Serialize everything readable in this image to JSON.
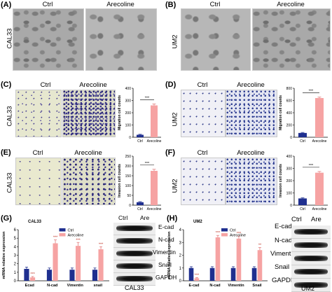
{
  "panels": {
    "A": {
      "label": "(A)",
      "cell_line": "CAL33",
      "ctrl": "Ctrl",
      "treat": "Arecoline"
    },
    "B": {
      "label": "(B)",
      "cell_line": "UM2",
      "ctrl": "Ctrl",
      "treat": "Arecoline"
    },
    "C": {
      "label": "(C)",
      "cell_line": "CAL33",
      "ctrl": "Ctrl",
      "treat": "Arecoline"
    },
    "D": {
      "label": "(D)",
      "cell_line": "UM2",
      "ctrl": "Ctrl",
      "treat": "Arecoline"
    },
    "E": {
      "label": "(E)",
      "cell_line": "CAL33",
      "ctrl": "Ctrl",
      "treat": "Arecoline"
    },
    "F": {
      "label": "(F)",
      "cell_line": "UM2",
      "ctrl": "Ctrl",
      "treat": "Arecoline"
    },
    "G": {
      "label": "(G)",
      "title": "CAL33",
      "wb_ctrl": "Ctrl",
      "wb_treat": "Are",
      "wb_caption": "CAL33",
      "wb_rows": [
        "E-cad",
        "N-cad",
        "Vimentin",
        "Snail",
        "GAPDH"
      ]
    },
    "H": {
      "label": "(H)",
      "title": "UM2",
      "wb_ctrl": "Ctrl",
      "wb_treat": "Are",
      "wb_caption": "UM2",
      "wb_rows": [
        "E-cad",
        "N-cad",
        "Vimentin",
        "Snail",
        "GAPDH"
      ]
    }
  },
  "colors": {
    "ctrl": "#1f2f8f",
    "treat": "#f6a3a3",
    "err_treat": "#e27f7f"
  },
  "chart_data": [
    {
      "panel": "C",
      "type": "bar",
      "ylabel": "Migration cell counts",
      "categories": [
        "Ctrl",
        "Arecoline"
      ],
      "values": [
        20,
        260
      ],
      "errors": [
        4,
        12
      ],
      "ylim": [
        0,
        400
      ],
      "yticks": [
        0,
        100,
        200,
        300,
        400
      ],
      "significance": "***"
    },
    {
      "panel": "D",
      "type": "bar",
      "ylabel": "Migration cell counts",
      "categories": [
        "Ctrl",
        "Arecoline"
      ],
      "values": [
        70,
        640
      ],
      "errors": [
        8,
        15
      ],
      "ylim": [
        0,
        800
      ],
      "yticks": [
        0,
        200,
        400,
        600,
        800
      ],
      "significance": "***"
    },
    {
      "panel": "E",
      "type": "bar",
      "ylabel": "Invasion cell counts",
      "categories": [
        "Ctrl",
        "Arecoline"
      ],
      "values": [
        15,
        175
      ],
      "errors": [
        3,
        8
      ],
      "ylim": [
        0,
        250
      ],
      "yticks": [
        0,
        50,
        100,
        150,
        200,
        250
      ],
      "significance": "***"
    },
    {
      "panel": "F",
      "type": "bar",
      "ylabel": "Invasion cell counts",
      "categories": [
        "Ctrl",
        "Arecoline"
      ],
      "values": [
        55,
        265
      ],
      "errors": [
        5,
        10
      ],
      "ylim": [
        0,
        400
      ],
      "yticks": [
        0,
        100,
        200,
        300,
        400
      ],
      "significance": "***"
    },
    {
      "panel": "G",
      "type": "bar",
      "title": "CAL33",
      "ylabel": "mRNA relative expression",
      "categories": [
        "Ecad",
        "N-cad",
        "Vimentin",
        "snail"
      ],
      "series": [
        {
          "name": "Ctrl",
          "values": [
            1.4,
            1.3,
            1.3,
            1.3
          ],
          "errors": [
            0.2,
            0.2,
            0.2,
            0.2
          ]
        },
        {
          "name": "Arecoline",
          "values": [
            0.4,
            4.4,
            4.1,
            3.7
          ],
          "errors": [
            0.1,
            0.4,
            0.4,
            0.3
          ]
        }
      ],
      "ylim": [
        0,
        6
      ],
      "yticks": [
        0,
        1,
        2,
        3,
        4,
        5,
        6
      ],
      "significance": [
        "***",
        "***",
        "***",
        "***"
      ]
    },
    {
      "panel": "H",
      "type": "bar",
      "title": "UM2",
      "ylabel": "mRNA relative expression",
      "categories": [
        "E-cad",
        "N-cad",
        "Vimentin",
        "Snail"
      ],
      "series": [
        {
          "name": "Ctrl",
          "values": [
            1.0,
            1.0,
            1.0,
            1.0
          ],
          "errors": [
            0.1,
            0.1,
            0.1,
            0.1
          ]
        },
        {
          "name": "Arecoline",
          "values": [
            0.2,
            3.4,
            3.3,
            2.4
          ],
          "errors": [
            0.05,
            0.15,
            0.2,
            0.2
          ]
        }
      ],
      "ylim": [
        0,
        4
      ],
      "yticks": [
        0,
        1,
        2,
        3,
        4
      ],
      "significance": [
        "***",
        "***",
        "***",
        "**"
      ]
    }
  ]
}
